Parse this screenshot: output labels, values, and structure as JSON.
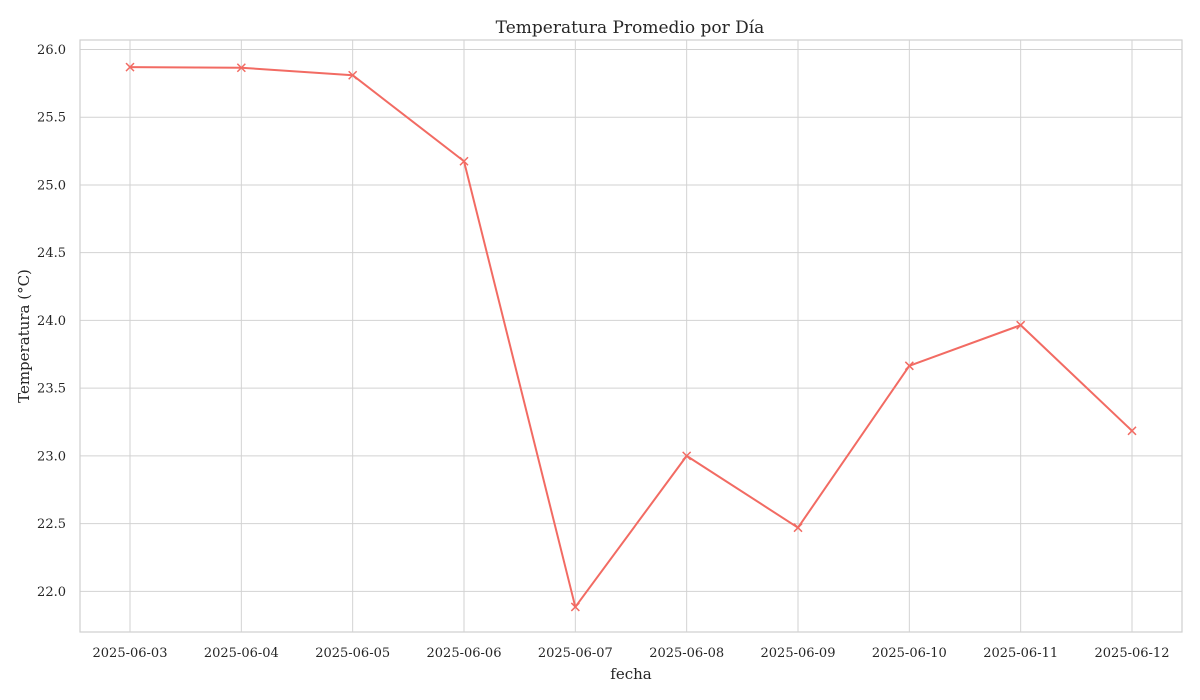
{
  "chart_data": {
    "type": "line",
    "title": "Temperatura Promedio por Día",
    "xlabel": "fecha",
    "ylabel": "Temperatura (°C)",
    "x": [
      "2025-06-03",
      "2025-06-04",
      "2025-06-05",
      "2025-06-06",
      "2025-06-07",
      "2025-06-08",
      "2025-06-09",
      "2025-06-10",
      "2025-06-11",
      "2025-06-12"
    ],
    "series": [
      {
        "values": [
          25.87,
          25.865,
          25.81,
          25.175,
          21.885,
          23.0,
          22.47,
          23.665,
          23.965,
          23.185
        ],
        "color": "#f26b63",
        "marker": "x"
      }
    ],
    "yticks": [
      22.0,
      22.5,
      23.0,
      23.5,
      24.0,
      24.5,
      25.0,
      25.5,
      26.0
    ],
    "ylim": [
      21.7,
      26.07
    ],
    "grid": true,
    "legend": "none"
  }
}
